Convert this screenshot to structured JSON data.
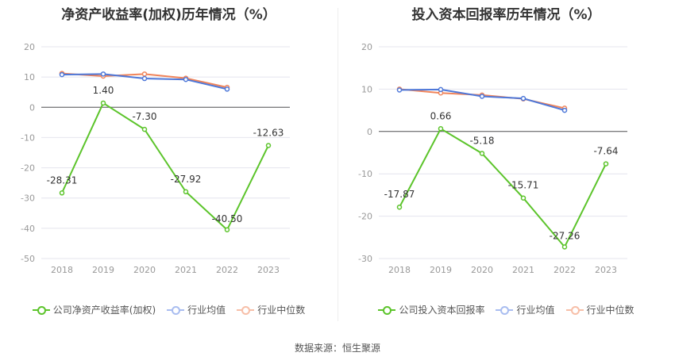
{
  "source_text": "数据来源：恒生聚源",
  "colors": {
    "company": "#5cc42b",
    "avg": "#4e78d9",
    "median": "#f0845a",
    "grid": "#e4e4ee",
    "tick": "#999999"
  },
  "chart_data": [
    {
      "type": "line",
      "title": "净资产收益率(加权)历年情况（%）",
      "categories": [
        "2018",
        "2019",
        "2020",
        "2021",
        "2022",
        "2023"
      ],
      "ylim": [
        -50,
        20
      ],
      "yticks": [
        20,
        10,
        0,
        -10,
        -20,
        -30,
        -40,
        -50
      ],
      "grid": true,
      "legend_placement": "bottom",
      "series": [
        {
          "name": "公司净资产收益率(加权)",
          "key": "company",
          "values": [
            -28.31,
            1.4,
            -7.3,
            -27.92,
            -40.5,
            -12.63
          ],
          "labels": [
            "-28.31",
            "1.40",
            "-7.30",
            "-27.92",
            "-40.50",
            "-12.63"
          ]
        },
        {
          "name": "行业均值",
          "key": "avg",
          "values": [
            10.8,
            11.0,
            9.5,
            9.2,
            6.0,
            null
          ]
        },
        {
          "name": "行业中位数",
          "key": "median",
          "values": [
            11.2,
            10.3,
            11.0,
            9.6,
            6.6,
            null
          ]
        }
      ]
    },
    {
      "type": "line",
      "title": "投入资本回报率历年情况（%）",
      "categories": [
        "2018",
        "2019",
        "2020",
        "2021",
        "2022",
        "2023"
      ],
      "ylim": [
        -30,
        20
      ],
      "yticks": [
        20,
        10,
        0,
        -10,
        -20,
        -30
      ],
      "grid": true,
      "legend_placement": "bottom",
      "series": [
        {
          "name": "公司投入资本回报率",
          "key": "company",
          "values": [
            -17.87,
            0.66,
            -5.18,
            -15.71,
            -27.26,
            -7.64
          ],
          "labels": [
            "-17.87",
            "0.66",
            "-5.18",
            "-15.71",
            "-27.26",
            "-7.64"
          ]
        },
        {
          "name": "行业均值",
          "key": "avg",
          "values": [
            9.8,
            9.9,
            8.3,
            7.8,
            5.0,
            null
          ]
        },
        {
          "name": "行业中位数",
          "key": "median",
          "values": [
            10.0,
            9.1,
            8.6,
            7.7,
            5.5,
            null
          ]
        }
      ]
    }
  ]
}
